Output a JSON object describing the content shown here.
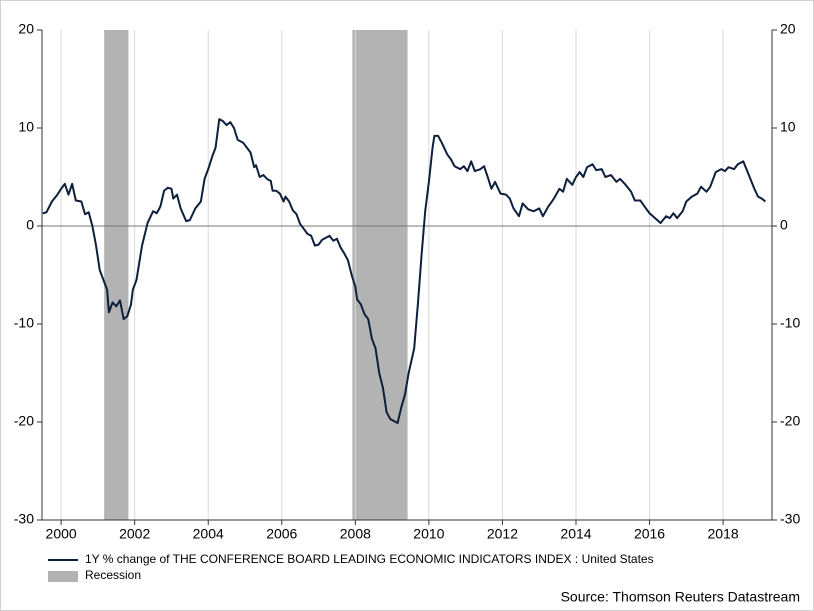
{
  "chart_data": {
    "type": "line",
    "x": [
      1999.5,
      1999.6,
      1999.75,
      1999.9,
      2000.0,
      2000.1,
      2000.2,
      2000.3,
      2000.4,
      2000.55,
      2000.65,
      2000.75,
      2000.85,
      2000.95,
      2001.05,
      2001.15,
      2001.25,
      2001.3,
      2001.4,
      2001.5,
      2001.6,
      2001.7,
      2001.8,
      2001.9,
      2001.95,
      2002.05,
      2002.2,
      2002.35,
      2002.5,
      2002.6,
      2002.7,
      2002.8,
      2002.9,
      2003.0,
      2003.05,
      2003.15,
      2003.25,
      2003.4,
      2003.5,
      2003.65,
      2003.8,
      2003.9,
      2004.0,
      2004.1,
      2004.2,
      2004.3,
      2004.4,
      2004.5,
      2004.6,
      2004.7,
      2004.8,
      2004.95,
      2005.05,
      2005.15,
      2005.25,
      2005.3,
      2005.4,
      2005.5,
      2005.6,
      2005.7,
      2005.75,
      2005.85,
      2005.95,
      2006.05,
      2006.1,
      2006.2,
      2006.3,
      2006.4,
      2006.5,
      2006.6,
      2006.7,
      2006.8,
      2006.9,
      2007.0,
      2007.1,
      2007.2,
      2007.3,
      2007.4,
      2007.5,
      2007.6,
      2007.7,
      2007.8,
      2007.9,
      2008.0,
      2008.05,
      2008.15,
      2008.25,
      2008.35,
      2008.45,
      2008.55,
      2008.65,
      2008.75,
      2008.85,
      2008.95,
      2009.05,
      2009.15,
      2009.25,
      2009.35,
      2009.45,
      2009.6,
      2009.7,
      2009.8,
      2009.9,
      2010.0,
      2010.1,
      2010.15,
      2010.25,
      2010.35,
      2010.5,
      2010.6,
      2010.7,
      2010.85,
      2010.95,
      2011.05,
      2011.15,
      2011.25,
      2011.4,
      2011.5,
      2011.6,
      2011.7,
      2011.8,
      2011.95,
      2012.1,
      2012.2,
      2012.3,
      2012.45,
      2012.55,
      2012.7,
      2012.85,
      2013.0,
      2013.1,
      2013.25,
      2013.4,
      2013.55,
      2013.65,
      2013.75,
      2013.9,
      2014.0,
      2014.1,
      2014.2,
      2014.3,
      2014.45,
      2014.55,
      2014.7,
      2014.8,
      2014.95,
      2015.1,
      2015.2,
      2015.35,
      2015.5,
      2015.6,
      2015.75,
      2015.9,
      2016.0,
      2016.15,
      2016.3,
      2016.45,
      2016.55,
      2016.65,
      2016.75,
      2016.9,
      2017.0,
      2017.15,
      2017.3,
      2017.4,
      2017.55,
      2017.65,
      2017.8,
      2017.95,
      2018.05,
      2018.15,
      2018.3,
      2018.4,
      2018.55,
      2018.7,
      2018.85,
      2018.95,
      2019.05,
      2019.15
    ],
    "series": [
      {
        "name": "1Y % change of THE CONFERENCE BOARD LEADING ECONOMIC INDICATORS INDEX : United States",
        "color": "#0d1f3c",
        "values": [
          1.3,
          1.4,
          2.5,
          3.2,
          3.8,
          4.3,
          3.2,
          4.3,
          2.6,
          2.5,
          1.2,
          1.4,
          0.0,
          -2.0,
          -4.5,
          -5.5,
          -6.5,
          -8.8,
          -7.8,
          -8.2,
          -7.6,
          -9.5,
          -9.2,
          -8.0,
          -6.5,
          -5.5,
          -2.0,
          0.3,
          1.5,
          1.3,
          2.0,
          3.6,
          3.9,
          3.8,
          2.8,
          3.2,
          1.8,
          0.5,
          0.6,
          1.8,
          2.5,
          4.8,
          5.8,
          7.0,
          8.0,
          10.9,
          10.7,
          10.3,
          10.6,
          10.0,
          8.8,
          8.5,
          8.0,
          7.5,
          6.0,
          6.2,
          5.0,
          5.2,
          4.8,
          4.6,
          3.6,
          3.6,
          3.3,
          2.5,
          3.0,
          2.5,
          1.6,
          1.2,
          0.2,
          -0.3,
          -0.8,
          -1.0,
          -2.0,
          -1.9,
          -1.4,
          -1.2,
          -1.0,
          -1.5,
          -1.3,
          -2.2,
          -2.8,
          -3.5,
          -5.0,
          -6.2,
          -7.5,
          -8.0,
          -9.0,
          -9.5,
          -11.5,
          -12.5,
          -15.0,
          -16.5,
          -19.0,
          -19.7,
          -19.9,
          -20.1,
          -18.5,
          -17.2,
          -15.0,
          -12.5,
          -8.0,
          -3.0,
          1.5,
          4.5,
          8.0,
          9.2,
          9.2,
          8.5,
          7.3,
          6.8,
          6.1,
          5.8,
          6.1,
          5.6,
          6.6,
          5.6,
          5.8,
          6.1,
          5.0,
          3.8,
          4.5,
          3.3,
          3.2,
          2.8,
          1.8,
          1.0,
          2.3,
          1.7,
          1.5,
          1.8,
          1.0,
          2.0,
          2.8,
          3.8,
          3.5,
          4.8,
          4.2,
          5.0,
          5.5,
          5.0,
          6.0,
          6.3,
          5.7,
          5.8,
          5.0,
          5.2,
          4.5,
          4.8,
          4.2,
          3.5,
          2.6,
          2.6,
          1.8,
          1.3,
          0.8,
          0.3,
          1.0,
          0.8,
          1.3,
          0.8,
          1.5,
          2.5,
          3.0,
          3.3,
          4.0,
          3.5,
          4.0,
          5.5,
          5.8,
          5.6,
          6.0,
          5.8,
          6.3,
          6.6,
          5.2,
          3.8,
          3.0,
          2.8,
          2.5
        ]
      }
    ],
    "recessions": {
      "name": "Recession",
      "color": "#b3b3b3",
      "spans": [
        [
          2001.17,
          2001.83
        ],
        [
          2007.92,
          2009.42
        ]
      ]
    },
    "xlim": [
      1999.48,
      2019.33
    ],
    "xticks": [
      2000,
      2002,
      2004,
      2006,
      2008,
      2010,
      2012,
      2014,
      2016,
      2018
    ],
    "ylim": [
      -30,
      20
    ],
    "yticks": [
      -30,
      -20,
      -10,
      0,
      10,
      20
    ],
    "grid": true,
    "source": "Source: Thomson Reuters Datastream"
  }
}
